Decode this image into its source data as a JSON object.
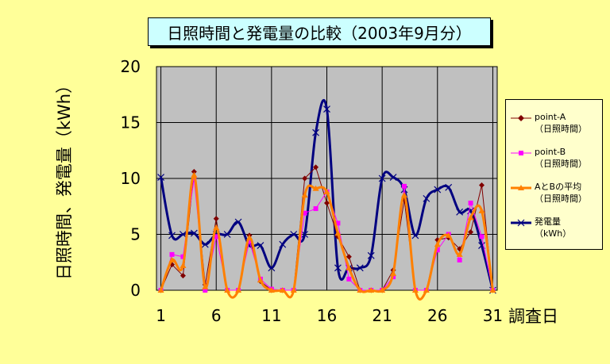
{
  "chart_data": {
    "type": "line",
    "title": "日照時間と発電量の比較（2003年9月分）",
    "xlabel": "調査日",
    "ylabel": "日照時間、発電量（kWh）",
    "x": [
      1,
      2,
      3,
      4,
      5,
      6,
      7,
      8,
      9,
      10,
      11,
      12,
      13,
      14,
      15,
      16,
      17,
      18,
      19,
      20,
      21,
      22,
      23,
      24,
      25,
      26,
      27,
      28,
      29,
      30,
      31
    ],
    "xticks": [
      1,
      6,
      11,
      16,
      21,
      26,
      31
    ],
    "ylim": [
      0,
      20
    ],
    "yticks": [
      0,
      5,
      10,
      15,
      20
    ],
    "grid": true,
    "legend_position": "right",
    "series": [
      {
        "name": "point-A （日照時間）",
        "color": "#800000",
        "marker": "diamond",
        "values": [
          0,
          2.3,
          1.3,
          10.6,
          0.5,
          6.4,
          0,
          0,
          4.9,
          0.8,
          0,
          0,
          0,
          10,
          11,
          7.8,
          4.8,
          3,
          0,
          0,
          0,
          1.8,
          8.1,
          0,
          0,
          4.5,
          4.7,
          3.7,
          5.2,
          9.4,
          0
        ]
      },
      {
        "name": "point-B （日照時間）",
        "color": "#ff00ff",
        "marker": "square",
        "values": [
          0,
          3.2,
          3,
          10,
          0,
          4.8,
          0,
          0,
          4.4,
          1,
          0.1,
          0,
          0,
          6.9,
          7.3,
          8.8,
          6,
          1,
          0,
          0,
          0,
          1.2,
          9.3,
          0,
          0,
          3.6,
          5,
          2.7,
          7.8,
          4.8,
          0
        ]
      },
      {
        "name": "AとBの平均 （日照時間）",
        "color": "#ff8000",
        "marker": "triangle",
        "values": [
          0,
          2.7,
          2.2,
          10.3,
          0.3,
          5.6,
          0,
          0,
          4.7,
          0.9,
          0,
          0,
          0,
          8.5,
          9.1,
          8.8,
          5.1,
          2,
          0,
          0,
          0,
          1.5,
          8.5,
          0,
          0,
          4.1,
          4.9,
          3.2,
          6.5,
          7.1,
          0
        ]
      },
      {
        "name": "発電量 （kWh）",
        "color": "#000080",
        "marker": "x",
        "values": [
          10.1,
          4.9,
          5,
          5.1,
          4.1,
          5,
          5,
          6.1,
          4,
          4,
          2,
          4.1,
          5,
          5,
          14.1,
          16.2,
          2,
          2,
          2,
          3.1,
          10,
          10.1,
          9,
          4.9,
          8.2,
          9,
          9.2,
          7,
          7.1,
          4,
          0
        ]
      }
    ]
  },
  "legend": {
    "items": [
      {
        "line1": "point-A",
        "line2": "（日照時間）"
      },
      {
        "line1": "point-B",
        "line2": "（日照時間）"
      },
      {
        "line1": "AとBの平均",
        "line2": "（日照時間）"
      },
      {
        "line1": "発電量",
        "line2": "（kWh）"
      }
    ]
  }
}
